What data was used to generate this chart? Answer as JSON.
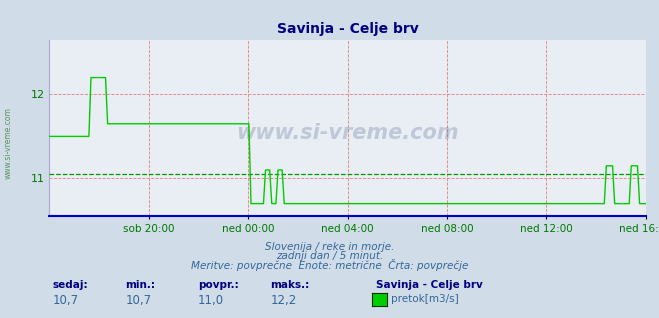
{
  "title": "Savinja - Celje brv",
  "title_color": "#000080",
  "bg_color": "#d0dce8",
  "plot_bg_color": "#e8eef4",
  "grid_color": "#e08080",
  "line_color": "#00cc00",
  "avg_line_color": "#009900",
  "border_top_color": "#cc0000",
  "border_bottom_color": "#0000cc",
  "tick_label_color": "#007700",
  "x_tick_labels": [
    "sob 20:00",
    "ned 00:00",
    "ned 04:00",
    "ned 08:00",
    "ned 12:00",
    "ned 16:00"
  ],
  "ylim": [
    10.55,
    12.65
  ],
  "yticks": [
    11,
    12
  ],
  "avg_value": 11.05,
  "watermark": "www.si-vreme.com",
  "subtitle1": "Slovenija / reke in morje.",
  "subtitle2": "zadnji dan / 5 minut.",
  "subtitle3": "Meritve: povprečne  Enote: metrične  Črta: povprečje",
  "legend_title": "Savinja - Celje brv",
  "legend_label": "pretok[m3/s]",
  "stat_labels": [
    "sedaj:",
    "min.:",
    "povpr.:",
    "maks.:"
  ],
  "stat_values": [
    "10,7",
    "10,7",
    "11,0",
    "12,2"
  ],
  "sidebar_text": "www.si-vreme.com",
  "n_points": 288
}
